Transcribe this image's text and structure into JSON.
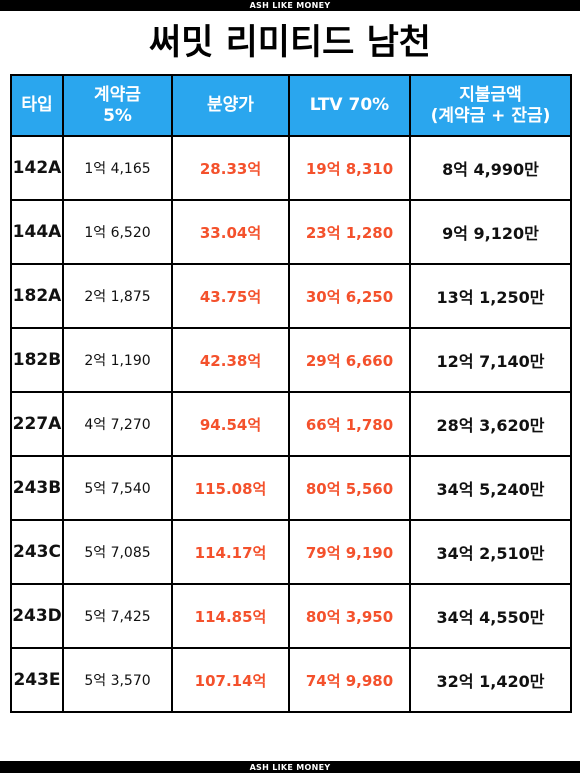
{
  "brand_top": "ASH LIKE MONEY",
  "brand_bottom": "ASH LIKE MONEY",
  "title": "써밋 리미티드 남천",
  "colors": {
    "header_bg": "#2aa6ee",
    "accent_red": "#f4512c"
  },
  "table": {
    "headers": {
      "type": "타입",
      "deposit_line1": "계약금",
      "deposit_line2": "5%",
      "price": "분양가",
      "ltv": "LTV 70%",
      "total_line1": "지불금액",
      "total_line2": "(계약금 + 잔금)"
    },
    "rows": [
      {
        "type": "142A",
        "deposit": "1억 4,165",
        "price": "28.33억",
        "ltv": "19억 8,310",
        "total": "8억 4,990만"
      },
      {
        "type": "144A",
        "deposit": "1억 6,520",
        "price": "33.04억",
        "ltv": "23억 1,280",
        "total": "9억 9,120만"
      },
      {
        "type": "182A",
        "deposit": "2억 1,875",
        "price": "43.75억",
        "ltv": "30억 6,250",
        "total": "13억 1,250만"
      },
      {
        "type": "182B",
        "deposit": "2억 1,190",
        "price": "42.38억",
        "ltv": "29억 6,660",
        "total": "12억 7,140만"
      },
      {
        "type": "227A",
        "deposit": "4억 7,270",
        "price": "94.54억",
        "ltv": "66억 1,780",
        "total": "28억 3,620만"
      },
      {
        "type": "243B",
        "deposit": "5억 7,540",
        "price": "115.08억",
        "ltv": "80억 5,560",
        "total": "34억 5,240만"
      },
      {
        "type": "243C",
        "deposit": "5억 7,085",
        "price": "114.17억",
        "ltv": "79억 9,190",
        "total": "34억 2,510만"
      },
      {
        "type": "243D",
        "deposit": "5억 7,425",
        "price": "114.85억",
        "ltv": "80억 3,950",
        "total": "34억 4,550만"
      },
      {
        "type": "243E",
        "deposit": "5억 3,570",
        "price": "107.14억",
        "ltv": "74억 9,980",
        "total": "32억 1,420만"
      }
    ]
  }
}
